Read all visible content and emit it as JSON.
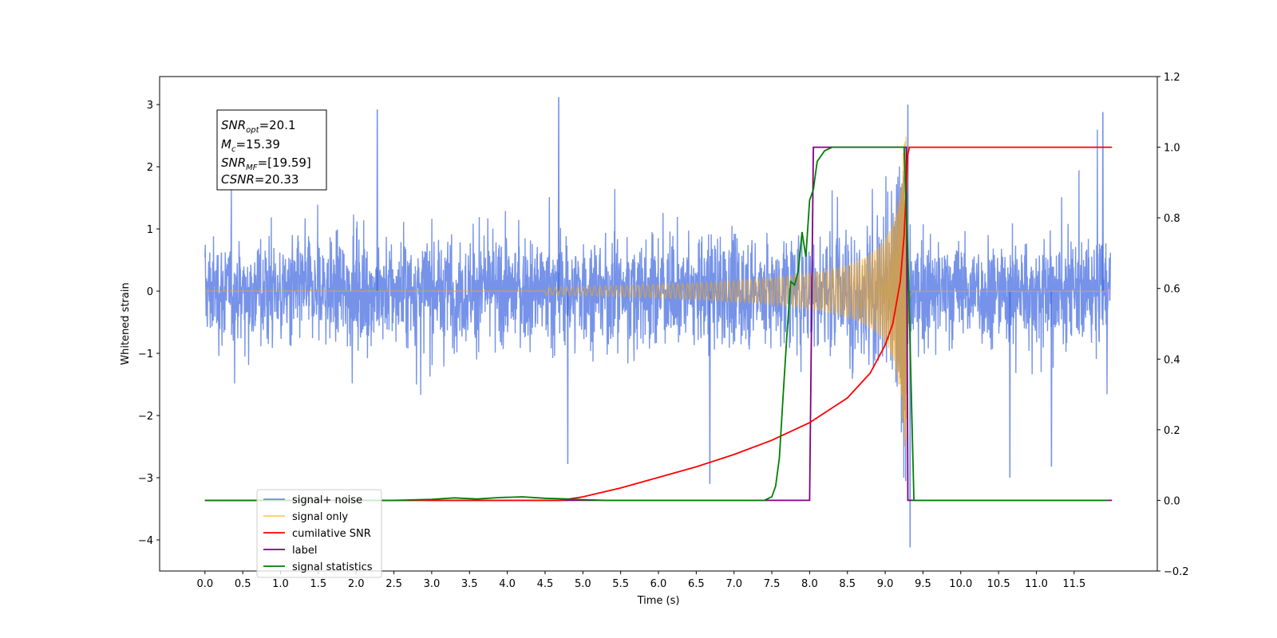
{
  "chart_data": {
    "type": "line",
    "xlabel": "Time (s)",
    "ylabel_left": "Whitened strain",
    "ylabel_right": "",
    "xlim": [
      -0.6,
      12.6
    ],
    "ylim_left": [
      -4.5,
      3.45
    ],
    "ylim_right": [
      -0.2,
      1.2
    ],
    "x_ticks": [
      "0.0",
      "0.5",
      "1.0",
      "1.5",
      "2.0",
      "2.5",
      "3.0",
      "3.5",
      "4.0",
      "4.5",
      "5.0",
      "5.5",
      "6.0",
      "6.5",
      "7.0",
      "7.5",
      "8.0",
      "8.5",
      "9.0",
      "9.5",
      "10.0",
      "10.5",
      "11.0",
      "11.5"
    ],
    "y_ticks_left": [
      "3",
      "2",
      "1",
      "0",
      "−1",
      "−2",
      "−3",
      "−4"
    ],
    "y_ticks_right": [
      "1.2",
      "1.0",
      "0.8",
      "0.6",
      "0.4",
      "0.2",
      "0.0",
      "−0.2"
    ],
    "grid": false,
    "legend_position": "lower-left",
    "annotation": {
      "lines": [
        {
          "label": "SNR",
          "sub": "opt",
          "value": "=20.1"
        },
        {
          "label": "M",
          "sub": "c",
          "value": "=15.39"
        },
        {
          "label": "SNR",
          "sub": "MF",
          "value": "=[19.59]"
        },
        {
          "label": "CSNR",
          "sub": "",
          "value": "=20.33"
        }
      ]
    },
    "series": [
      {
        "name": "signal+ noise",
        "axis": "left",
        "color": "#4169e1",
        "note": "noise band approx ±1.3 with peaks to ~3.1 / -2.8, glitch to -4.1 near t=9.33",
        "x_range": [
          0.0,
          11.98
        ],
        "peaks": [
          {
            "x": 4.68,
            "y": 3.12
          },
          {
            "x": 2.28,
            "y": 2.92
          },
          {
            "x": 9.3,
            "y": 3.0
          },
          {
            "x": 11.88,
            "y": 2.88
          },
          {
            "x": 9.33,
            "y": -4.12
          },
          {
            "x": 6.68,
            "y": -3.1
          },
          {
            "x": 10.65,
            "y": -3.0
          },
          {
            "x": 4.8,
            "y": -2.78
          },
          {
            "x": 11.2,
            "y": -2.82
          }
        ]
      },
      {
        "name": "signal only",
        "axis": "left",
        "color": "#ffa500",
        "note": "chirp growing from ~0 at t=5 to amplitude ~2.5 at t=9.28, then ringdown to 0 at t=9.35",
        "x_range": [
          0.0,
          11.98
        ]
      },
      {
        "name": "cumilative SNR",
        "axis": "right",
        "color": "#ff0000",
        "x": [
          0.0,
          4.7,
          5.0,
          5.5,
          6.0,
          6.5,
          7.0,
          7.5,
          8.0,
          8.5,
          8.8,
          9.0,
          9.1,
          9.2,
          9.25,
          9.3,
          9.32,
          12.0
        ],
        "y": [
          0.0,
          0.0,
          0.01,
          0.035,
          0.065,
          0.095,
          0.13,
          0.17,
          0.22,
          0.29,
          0.36,
          0.44,
          0.5,
          0.62,
          0.75,
          0.98,
          1.0,
          1.0
        ]
      },
      {
        "name": "label",
        "axis": "right",
        "color": "#800080",
        "x": [
          0.0,
          8.0,
          8.05,
          9.28,
          9.3,
          12.0
        ],
        "y": [
          0.0,
          0.0,
          1.0,
          1.0,
          0.0,
          0.0
        ]
      },
      {
        "name": "signal statistics",
        "axis": "right",
        "color": "#008000",
        "x": [
          0.0,
          2.5,
          3.0,
          3.3,
          3.6,
          3.9,
          4.2,
          4.5,
          4.8,
          5.0,
          5.3,
          7.4,
          7.5,
          7.55,
          7.6,
          7.65,
          7.7,
          7.75,
          7.8,
          7.85,
          7.9,
          7.95,
          8.0,
          8.05,
          8.1,
          8.2,
          8.3,
          8.5,
          9.0,
          9.25,
          9.3,
          9.38,
          11.95
        ],
        "y": [
          0.0,
          0.0,
          0.003,
          0.007,
          0.004,
          0.008,
          0.01,
          0.006,
          0.004,
          0.002,
          0.0,
          0.0,
          0.01,
          0.04,
          0.12,
          0.3,
          0.47,
          0.62,
          0.61,
          0.65,
          0.76,
          0.69,
          0.85,
          0.88,
          0.96,
          0.99,
          1.0,
          1.0,
          1.0,
          1.0,
          0.7,
          0.0,
          0.0
        ]
      }
    ]
  }
}
